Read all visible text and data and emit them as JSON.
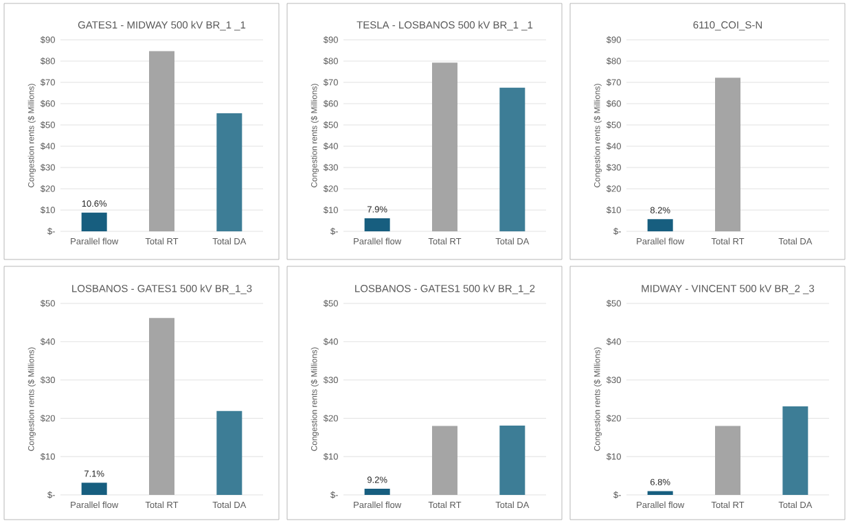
{
  "chart_data": [
    {
      "type": "bar",
      "title": "GATES1 - MIDWAY  500 kV BR_1 _1",
      "ylabel": "Congestion rents ($ Millions)",
      "categories": [
        "Parallel flow",
        "Total RT",
        "Total DA"
      ],
      "values": [
        8.8,
        84.7,
        55.5
      ],
      "colors": [
        "#175e7f",
        "#a5a5a5",
        "#3d7d96"
      ],
      "annotations": [
        {
          "text": "10.6%",
          "x": "Parallel flow",
          "y": 8.8
        }
      ],
      "ylim": [
        0,
        90
      ],
      "yticks": [
        {
          "value": 0,
          "label": "$-"
        },
        {
          "value": 10,
          "label": "$10"
        },
        {
          "value": 20,
          "label": "$20"
        },
        {
          "value": 30,
          "label": "$30"
        },
        {
          "value": 40,
          "label": "$40"
        },
        {
          "value": 50,
          "label": "$50"
        },
        {
          "value": 60,
          "label": "$60"
        },
        {
          "value": 70,
          "label": "$70"
        },
        {
          "value": 80,
          "label": "$80"
        },
        {
          "value": 90,
          "label": "$90"
        }
      ],
      "grid": "y"
    },
    {
      "type": "bar",
      "title": "TESLA  - LOSBANOS 500 kV BR_1 _1",
      "ylabel": "Congestion rents ($ Millions)",
      "categories": [
        "Parallel flow",
        "Total RT",
        "Total DA"
      ],
      "values": [
        6.1,
        79.3,
        67.5
      ],
      "colors": [
        "#175e7f",
        "#a5a5a5",
        "#3d7d96"
      ],
      "annotations": [
        {
          "text": "7.9%",
          "x": "Parallel flow",
          "y": 6.1
        }
      ],
      "ylim": [
        0,
        90
      ],
      "yticks": [
        {
          "value": 0,
          "label": "$-"
        },
        {
          "value": 10,
          "label": "$10"
        },
        {
          "value": 20,
          "label": "$20"
        },
        {
          "value": 30,
          "label": "$30"
        },
        {
          "value": 40,
          "label": "$40"
        },
        {
          "value": 50,
          "label": "$50"
        },
        {
          "value": 60,
          "label": "$60"
        },
        {
          "value": 70,
          "label": "$70"
        },
        {
          "value": 80,
          "label": "$80"
        },
        {
          "value": 90,
          "label": "$90"
        }
      ],
      "grid": "y"
    },
    {
      "type": "bar",
      "title": "6110_COI_S-N",
      "ylabel": "Congestion rents ($ Millions)",
      "categories": [
        "Parallel flow",
        "Total RT",
        "Total DA"
      ],
      "values": [
        5.7,
        72.2,
        null
      ],
      "colors": [
        "#175e7f",
        "#a5a5a5",
        "#3d7d96"
      ],
      "annotations": [
        {
          "text": "8.2%",
          "x": "Parallel flow",
          "y": 5.7
        }
      ],
      "ylim": [
        0,
        90
      ],
      "yticks": [
        {
          "value": 0,
          "label": "$-"
        },
        {
          "value": 10,
          "label": "$10"
        },
        {
          "value": 20,
          "label": "$20"
        },
        {
          "value": 30,
          "label": "$30"
        },
        {
          "value": 40,
          "label": "$40"
        },
        {
          "value": 50,
          "label": "$50"
        },
        {
          "value": 60,
          "label": "$60"
        },
        {
          "value": 70,
          "label": "$70"
        },
        {
          "value": 80,
          "label": "$80"
        },
        {
          "value": 90,
          "label": "$90"
        }
      ],
      "grid": "y"
    },
    {
      "type": "bar",
      "title": "LOSBANOS - GATES1 500 kV BR_1_3",
      "ylabel": "Congestion rents ($ Millions)",
      "categories": [
        "Parallel flow",
        "Total RT",
        "Total DA"
      ],
      "values": [
        3.2,
        46.2,
        21.9
      ],
      "colors": [
        "#175e7f",
        "#a5a5a5",
        "#3d7d96"
      ],
      "annotations": [
        {
          "text": "7.1%",
          "x": "Parallel flow",
          "y": 3.2
        }
      ],
      "ylim": [
        0,
        50
      ],
      "yticks": [
        {
          "value": 0,
          "label": "$-"
        },
        {
          "value": 10,
          "label": "$10"
        },
        {
          "value": 20,
          "label": "$20"
        },
        {
          "value": 30,
          "label": "$30"
        },
        {
          "value": 40,
          "label": "$40"
        },
        {
          "value": 50,
          "label": "$50"
        }
      ],
      "grid": "y"
    },
    {
      "type": "bar",
      "title": "LOSBANOS - GATES1 500 kV BR_1_2",
      "ylabel": "Congestion rents ($ Millions)",
      "categories": [
        "Parallel flow",
        "Total RT",
        "Total DA"
      ],
      "values": [
        1.6,
        18.0,
        18.1
      ],
      "colors": [
        "#175e7f",
        "#a5a5a5",
        "#3d7d96"
      ],
      "annotations": [
        {
          "text": "9.2%",
          "x": "Parallel flow",
          "y": 1.6
        }
      ],
      "ylim": [
        0,
        50
      ],
      "yticks": [
        {
          "value": 0,
          "label": "$-"
        },
        {
          "value": 10,
          "label": "$10"
        },
        {
          "value": 20,
          "label": "$20"
        },
        {
          "value": 30,
          "label": "$30"
        },
        {
          "value": 40,
          "label": "$40"
        },
        {
          "value": 50,
          "label": "$50"
        }
      ],
      "grid": "y"
    },
    {
      "type": "bar",
      "title": "MIDWAY - VINCENT 500 kV BR_2 _3",
      "ylabel": "Congestion rents ($ Millions)",
      "categories": [
        "Parallel flow",
        "Total RT",
        "Total DA"
      ],
      "values": [
        1.0,
        18.0,
        23.1
      ],
      "colors": [
        "#175e7f",
        "#a5a5a5",
        "#3d7d96"
      ],
      "annotations": [
        {
          "text": "6.8%",
          "x": "Parallel flow",
          "y": 1.0
        }
      ],
      "ylim": [
        0,
        50
      ],
      "yticks": [
        {
          "value": 0,
          "label": "$-"
        },
        {
          "value": 10,
          "label": "$10"
        },
        {
          "value": 20,
          "label": "$20"
        },
        {
          "value": 30,
          "label": "$30"
        },
        {
          "value": 40,
          "label": "$40"
        },
        {
          "value": 50,
          "label": "$50"
        }
      ],
      "grid": "y"
    }
  ]
}
